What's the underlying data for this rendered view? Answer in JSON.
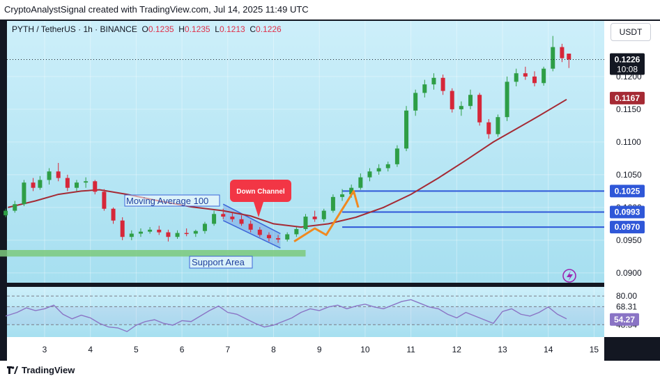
{
  "header": {
    "credit": "CryptoAnalystSignal created with TradingView.com, Jul 14, 2025 11:49 UTC"
  },
  "legend": {
    "symbol": "PYTH / TetherUS · 1h · BINANCE",
    "o_label": "O",
    "o_value": "0.1235",
    "h_label": "H",
    "h_value": "0.1235",
    "l_label": "L",
    "l_value": "0.1213",
    "c_label": "C",
    "c_value": "0.1226"
  },
  "currency_button": "USDT",
  "footer": {
    "brand": "TradingView"
  },
  "colors": {
    "background_top": "#cdeffa",
    "background_bottom": "#a6dff0",
    "candle_up": "#2e9e46",
    "candle_down": "#d62739",
    "ma": "#a52a34",
    "level_line": "#2f57d8",
    "support": "#7cc97d",
    "projection": "#f0891f",
    "channel": "#3c64d8",
    "rsi": "#8a74c5",
    "price_badge": "#131722",
    "ma_badge": "#a52a34",
    "level_badge": "#2f57d8"
  },
  "chart_data": {
    "type": "candlestick",
    "title": "PYTH / TetherUS · 1h · BINANCE",
    "x_ticks": [
      "3",
      "4",
      "5",
      "6",
      "7",
      "8",
      "9",
      "10",
      "11",
      "12",
      "13",
      "14",
      "15"
    ],
    "ylim": [
      0.0885,
      0.1285
    ],
    "y_ticks": [
      "0.1200",
      "0.1150",
      "0.1100",
      "0.1050",
      "0.1000",
      "0.0950",
      "0.0900"
    ],
    "close_path": [
      [
        2.2,
        0.099
      ],
      [
        2.4,
        0.1005
      ],
      [
        2.6,
        0.1035
      ],
      [
        2.8,
        0.104
      ],
      [
        2.95,
        0.1042
      ],
      [
        3.2,
        0.1062
      ],
      [
        3.4,
        0.1048
      ],
      [
        3.6,
        0.103
      ],
      [
        3.9,
        0.1042
      ],
      [
        4.1,
        0.1032
      ],
      [
        4.3,
        0.1015
      ],
      [
        4.45,
        0.0995
      ],
      [
        4.6,
        0.0985
      ],
      [
        4.75,
        0.096
      ],
      [
        5.0,
        0.0955
      ],
      [
        5.3,
        0.0965
      ],
      [
        5.6,
        0.0968
      ],
      [
        5.8,
        0.096
      ],
      [
        6.0,
        0.096
      ],
      [
        6.3,
        0.0962
      ],
      [
        6.55,
        0.0968
      ],
      [
        6.7,
        0.0978
      ],
      [
        6.9,
        0.0992
      ],
      [
        7.2,
        0.0988
      ],
      [
        7.5,
        0.0978
      ],
      [
        7.7,
        0.0965
      ],
      [
        7.9,
        0.0955
      ],
      [
        8.15,
        0.0952
      ],
      [
        8.4,
        0.096
      ],
      [
        8.6,
        0.0968
      ],
      [
        8.75,
        0.0985
      ],
      [
        8.95,
        0.099
      ],
      [
        9.15,
        0.0995
      ],
      [
        9.35,
        0.1015
      ],
      [
        9.55,
        0.102
      ],
      [
        9.75,
        0.103
      ],
      [
        9.9,
        0.1045
      ],
      [
        10.2,
        0.1055
      ],
      [
        10.5,
        0.1065
      ],
      [
        10.7,
        0.108
      ],
      [
        10.9,
        0.114
      ],
      [
        11.1,
        0.1175
      ],
      [
        11.35,
        0.1185
      ],
      [
        11.55,
        0.12
      ],
      [
        11.7,
        0.118
      ],
      [
        11.9,
        0.1165
      ],
      [
        12.1,
        0.115
      ],
      [
        12.35,
        0.117
      ],
      [
        12.55,
        0.113
      ],
      [
        12.75,
        0.1115
      ],
      [
        12.95,
        0.114
      ],
      [
        13.1,
        0.1185
      ],
      [
        13.3,
        0.12
      ],
      [
        13.55,
        0.1205
      ],
      [
        13.8,
        0.1195
      ],
      [
        13.95,
        0.1205
      ],
      [
        14.1,
        0.1245
      ],
      [
        14.3,
        0.123
      ],
      [
        14.45,
        0.1226
      ]
    ],
    "series": [
      {
        "name": "Moving Average 100",
        "x": [
          2.2,
          2.8,
          3.3,
          3.8,
          4.2,
          4.8,
          5.5,
          6.2,
          6.9,
          7.5,
          8.0,
          8.6,
          9.2,
          9.8,
          10.4,
          11.0,
          11.6,
          12.2,
          12.8,
          13.3,
          13.8,
          14.4
        ],
        "values": [
          0.1,
          0.101,
          0.102,
          0.1025,
          0.1027,
          0.102,
          0.101,
          0.1001,
          0.0995,
          0.0987,
          0.0975,
          0.097,
          0.0975,
          0.0985,
          0.1,
          0.102,
          0.1045,
          0.1072,
          0.11,
          0.112,
          0.114,
          0.1165
        ]
      }
    ],
    "candles": [
      {
        "x": 2.15,
        "o": 0.0988,
        "h": 0.0998,
        "l": 0.0985,
        "c": 0.0995
      },
      {
        "x": 2.35,
        "o": 0.0995,
        "h": 0.101,
        "l": 0.0992,
        "c": 0.1005
      },
      {
        "x": 2.55,
        "o": 0.1005,
        "h": 0.1042,
        "l": 0.1002,
        "c": 0.1038
      },
      {
        "x": 2.75,
        "o": 0.1038,
        "h": 0.1045,
        "l": 0.1025,
        "c": 0.103
      },
      {
        "x": 2.9,
        "o": 0.103,
        "h": 0.1048,
        "l": 0.1027,
        "c": 0.1042
      },
      {
        "x": 3.1,
        "o": 0.1042,
        "h": 0.106,
        "l": 0.1035,
        "c": 0.1055
      },
      {
        "x": 3.3,
        "o": 0.1055,
        "h": 0.1068,
        "l": 0.104,
        "c": 0.1045
      },
      {
        "x": 3.5,
        "o": 0.1045,
        "h": 0.105,
        "l": 0.1025,
        "c": 0.103
      },
      {
        "x": 3.7,
        "o": 0.103,
        "h": 0.1042,
        "l": 0.1025,
        "c": 0.1038
      },
      {
        "x": 3.9,
        "o": 0.1038,
        "h": 0.1046,
        "l": 0.103,
        "c": 0.104
      },
      {
        "x": 4.1,
        "o": 0.104,
        "h": 0.1042,
        "l": 0.102,
        "c": 0.1024
      },
      {
        "x": 4.3,
        "o": 0.1024,
        "h": 0.1028,
        "l": 0.0995,
        "c": 0.0998
      },
      {
        "x": 4.5,
        "o": 0.0998,
        "h": 0.1,
        "l": 0.0975,
        "c": 0.098
      },
      {
        "x": 4.7,
        "o": 0.098,
        "h": 0.0985,
        "l": 0.095,
        "c": 0.0955
      },
      {
        "x": 4.9,
        "o": 0.0955,
        "h": 0.0965,
        "l": 0.095,
        "c": 0.096
      },
      {
        "x": 5.1,
        "o": 0.096,
        "h": 0.0968,
        "l": 0.0955,
        "c": 0.0963
      },
      {
        "x": 5.3,
        "o": 0.0963,
        "h": 0.097,
        "l": 0.096,
        "c": 0.0966
      },
      {
        "x": 5.5,
        "o": 0.0966,
        "h": 0.0972,
        "l": 0.0958,
        "c": 0.0962
      },
      {
        "x": 5.7,
        "o": 0.0962,
        "h": 0.0966,
        "l": 0.0948,
        "c": 0.0955
      },
      {
        "x": 5.9,
        "o": 0.0955,
        "h": 0.0965,
        "l": 0.0952,
        "c": 0.0961
      },
      {
        "x": 6.1,
        "o": 0.0961,
        "h": 0.0968,
        "l": 0.0956,
        "c": 0.096
      },
      {
        "x": 6.3,
        "o": 0.096,
        "h": 0.0966,
        "l": 0.0955,
        "c": 0.0964
      },
      {
        "x": 6.5,
        "o": 0.0964,
        "h": 0.0978,
        "l": 0.096,
        "c": 0.0975
      },
      {
        "x": 6.7,
        "o": 0.0975,
        "h": 0.0995,
        "l": 0.0972,
        "c": 0.099
      },
      {
        "x": 6.9,
        "o": 0.099,
        "h": 0.0998,
        "l": 0.0982,
        "c": 0.0986
      },
      {
        "x": 7.1,
        "o": 0.0986,
        "h": 0.0992,
        "l": 0.0978,
        "c": 0.0982
      },
      {
        "x": 7.3,
        "o": 0.0982,
        "h": 0.0988,
        "l": 0.0972,
        "c": 0.0975
      },
      {
        "x": 7.5,
        "o": 0.0975,
        "h": 0.098,
        "l": 0.0962,
        "c": 0.0966
      },
      {
        "x": 7.7,
        "o": 0.0966,
        "h": 0.097,
        "l": 0.0955,
        "c": 0.0958
      },
      {
        "x": 7.9,
        "o": 0.0958,
        "h": 0.0962,
        "l": 0.0948,
        "c": 0.0953
      },
      {
        "x": 8.1,
        "o": 0.0953,
        "h": 0.0958,
        "l": 0.0946,
        "c": 0.0951
      },
      {
        "x": 8.3,
        "o": 0.0951,
        "h": 0.0962,
        "l": 0.0948,
        "c": 0.0959
      },
      {
        "x": 8.5,
        "o": 0.0959,
        "h": 0.097,
        "l": 0.0955,
        "c": 0.0967
      },
      {
        "x": 8.7,
        "o": 0.0967,
        "h": 0.099,
        "l": 0.0964,
        "c": 0.0986
      },
      {
        "x": 8.9,
        "o": 0.0986,
        "h": 0.0995,
        "l": 0.0978,
        "c": 0.0982
      },
      {
        "x": 9.1,
        "o": 0.0982,
        "h": 0.0998,
        "l": 0.0978,
        "c": 0.0995
      },
      {
        "x": 9.3,
        "o": 0.0995,
        "h": 0.102,
        "l": 0.0992,
        "c": 0.1016
      },
      {
        "x": 9.5,
        "o": 0.1016,
        "h": 0.1028,
        "l": 0.101,
        "c": 0.102
      },
      {
        "x": 9.7,
        "o": 0.102,
        "h": 0.1035,
        "l": 0.1015,
        "c": 0.103
      },
      {
        "x": 9.9,
        "o": 0.103,
        "h": 0.1052,
        "l": 0.1027,
        "c": 0.1046
      },
      {
        "x": 10.1,
        "o": 0.1046,
        "h": 0.106,
        "l": 0.104,
        "c": 0.1055
      },
      {
        "x": 10.3,
        "o": 0.1055,
        "h": 0.1066,
        "l": 0.105,
        "c": 0.106
      },
      {
        "x": 10.5,
        "o": 0.106,
        "h": 0.107,
        "l": 0.1055,
        "c": 0.1066
      },
      {
        "x": 10.7,
        "o": 0.1066,
        "h": 0.1095,
        "l": 0.1062,
        "c": 0.109
      },
      {
        "x": 10.9,
        "o": 0.109,
        "h": 0.1155,
        "l": 0.1086,
        "c": 0.1148
      },
      {
        "x": 11.1,
        "o": 0.1148,
        "h": 0.118,
        "l": 0.114,
        "c": 0.1175
      },
      {
        "x": 11.3,
        "o": 0.1175,
        "h": 0.1195,
        "l": 0.1168,
        "c": 0.1188
      },
      {
        "x": 11.5,
        "o": 0.1188,
        "h": 0.1205,
        "l": 0.118,
        "c": 0.1198
      },
      {
        "x": 11.7,
        "o": 0.1198,
        "h": 0.1203,
        "l": 0.1172,
        "c": 0.1178
      },
      {
        "x": 11.9,
        "o": 0.1178,
        "h": 0.1182,
        "l": 0.1145,
        "c": 0.115
      },
      {
        "x": 12.1,
        "o": 0.115,
        "h": 0.1162,
        "l": 0.114,
        "c": 0.1155
      },
      {
        "x": 12.3,
        "o": 0.1155,
        "h": 0.118,
        "l": 0.115,
        "c": 0.1172
      },
      {
        "x": 12.5,
        "o": 0.1172,
        "h": 0.1175,
        "l": 0.1125,
        "c": 0.113
      },
      {
        "x": 12.7,
        "o": 0.113,
        "h": 0.1135,
        "l": 0.1105,
        "c": 0.1112
      },
      {
        "x": 12.9,
        "o": 0.1112,
        "h": 0.1142,
        "l": 0.1108,
        "c": 0.1138
      },
      {
        "x": 13.1,
        "o": 0.1138,
        "h": 0.12,
        "l": 0.1132,
        "c": 0.1192
      },
      {
        "x": 13.3,
        "o": 0.1192,
        "h": 0.1212,
        "l": 0.1185,
        "c": 0.1205
      },
      {
        "x": 13.5,
        "o": 0.1205,
        "h": 0.1215,
        "l": 0.1195,
        "c": 0.12
      },
      {
        "x": 13.7,
        "o": 0.12,
        "h": 0.1208,
        "l": 0.1185,
        "c": 0.119
      },
      {
        "x": 13.9,
        "o": 0.119,
        "h": 0.1215,
        "l": 0.1186,
        "c": 0.1212
      },
      {
        "x": 14.1,
        "o": 0.1212,
        "h": 0.1262,
        "l": 0.1208,
        "c": 0.1245
      },
      {
        "x": 14.3,
        "o": 0.1245,
        "h": 0.125,
        "l": 0.1222,
        "c": 0.1228
      },
      {
        "x": 14.45,
        "o": 0.1235,
        "h": 0.1235,
        "l": 0.1213,
        "c": 0.1226
      }
    ],
    "levels": [
      {
        "value": 0.1025,
        "label": "0.1025"
      },
      {
        "value": 0.0993,
        "label": "0.0993"
      },
      {
        "value": 0.097,
        "label": "0.0970"
      }
    ],
    "support_area": {
      "from_x": 2.0,
      "to_x": 8.7,
      "low": 0.0925,
      "high": 0.0935,
      "label": "Support Area"
    },
    "down_channel": {
      "label": "Down Channel",
      "upper": [
        [
          6.9,
          0.1005
        ],
        [
          8.15,
          0.096
        ]
      ],
      "lower": [
        [
          6.9,
          0.098
        ],
        [
          8.15,
          0.0938
        ]
      ]
    },
    "projection_path": [
      [
        8.45,
        0.0948
      ],
      [
        8.9,
        0.0968
      ],
      [
        9.15,
        0.0958
      ],
      [
        9.75,
        0.1025
      ],
      [
        9.85,
        0.1
      ]
    ],
    "annotations": [
      "Moving Average 100",
      "Down Channel",
      "Support Area"
    ],
    "last_price": {
      "value": 0.1226,
      "label": "0.1226",
      "countdown": "10:08"
    },
    "ma_last": {
      "value": 0.1167,
      "label": "0.1167"
    },
    "rsi": {
      "ylim": [
        35,
        90
      ],
      "y_ticks": [
        "80.00",
        "68.31",
        "54.27",
        "48.54"
      ],
      "bands": [
        68.31,
        48.54
      ],
      "last": {
        "value": 54.27,
        "label": "54.27"
      },
      "values": [
        [
          2.15,
          58
        ],
        [
          2.4,
          62
        ],
        [
          2.6,
          67
        ],
        [
          2.8,
          64
        ],
        [
          3.0,
          66
        ],
        [
          3.2,
          70
        ],
        [
          3.4,
          60
        ],
        [
          3.6,
          55
        ],
        [
          3.8,
          59
        ],
        [
          4.0,
          56
        ],
        [
          4.2,
          50
        ],
        [
          4.4,
          46
        ],
        [
          4.6,
          45
        ],
        [
          4.8,
          41
        ],
        [
          5.0,
          48
        ],
        [
          5.2,
          52
        ],
        [
          5.4,
          54
        ],
        [
          5.6,
          50
        ],
        [
          5.8,
          48
        ],
        [
          6.0,
          53
        ],
        [
          6.2,
          52
        ],
        [
          6.4,
          58
        ],
        [
          6.6,
          64
        ],
        [
          6.8,
          69
        ],
        [
          7.0,
          62
        ],
        [
          7.2,
          60
        ],
        [
          7.4,
          55
        ],
        [
          7.6,
          50
        ],
        [
          7.8,
          46
        ],
        [
          8.0,
          48
        ],
        [
          8.2,
          52
        ],
        [
          8.4,
          56
        ],
        [
          8.6,
          62
        ],
        [
          8.8,
          66
        ],
        [
          9.0,
          64
        ],
        [
          9.2,
          68
        ],
        [
          9.4,
          70
        ],
        [
          9.6,
          66
        ],
        [
          9.8,
          69
        ],
        [
          10.0,
          71
        ],
        [
          10.2,
          68
        ],
        [
          10.4,
          66
        ],
        [
          10.6,
          70
        ],
        [
          10.8,
          74
        ],
        [
          11.0,
          76
        ],
        [
          11.2,
          72
        ],
        [
          11.4,
          68
        ],
        [
          11.6,
          66
        ],
        [
          11.8,
          60
        ],
        [
          12.0,
          56
        ],
        [
          12.2,
          62
        ],
        [
          12.4,
          58
        ],
        [
          12.6,
          54
        ],
        [
          12.8,
          50
        ],
        [
          13.0,
          63
        ],
        [
          13.2,
          66
        ],
        [
          13.4,
          60
        ],
        [
          13.6,
          58
        ],
        [
          13.8,
          62
        ],
        [
          14.0,
          68
        ],
        [
          14.2,
          60
        ],
        [
          14.4,
          55
        ]
      ]
    },
    "grid": true
  }
}
